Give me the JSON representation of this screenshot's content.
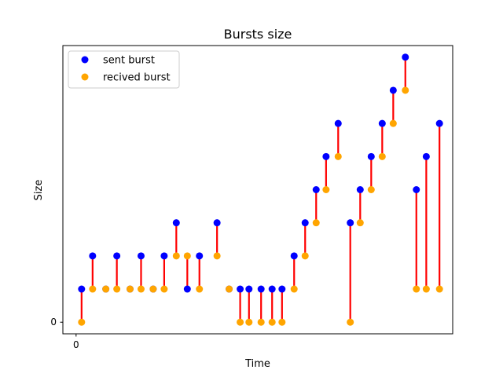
{
  "chart_data": {
    "type": "scatter",
    "title": "Bursts size",
    "xlabel": "Time",
    "ylabel": "Size",
    "x_ticks": [
      {
        "value": 0,
        "label": "0"
      }
    ],
    "y_ticks": [
      {
        "value": 0,
        "label": "0"
      }
    ],
    "xlim": [
      -1.2,
      34.2
    ],
    "ylim": [
      -0.35,
      8.35
    ],
    "grid": false,
    "legend_position": "top-left",
    "colors": {
      "sent": "#0000ff",
      "received": "#ffa500",
      "connector": "#ff0000"
    },
    "series": [
      {
        "name": "sent burst",
        "x": [
          0.5,
          1.5,
          2.7,
          3.7,
          4.9,
          5.9,
          7.0,
          8.0,
          9.1,
          10.1,
          11.2,
          12.8,
          13.9,
          14.9,
          15.7,
          16.8,
          17.8,
          18.7,
          19.8,
          20.8,
          21.8,
          22.7,
          23.8,
          24.9,
          25.8,
          26.8,
          27.8,
          28.8,
          29.9,
          30.9,
          31.8,
          33.0
        ],
        "values": [
          1,
          2,
          1,
          2,
          1,
          2,
          1,
          2,
          3,
          1,
          2,
          3,
          1,
          1,
          1,
          1,
          1,
          1,
          2,
          3,
          4,
          5,
          6,
          3,
          4,
          5,
          6,
          7,
          8,
          4,
          5,
          6
        ]
      },
      {
        "name": "recived burst",
        "x": [
          0.5,
          1.5,
          2.7,
          3.7,
          4.9,
          5.9,
          7.0,
          8.0,
          9.1,
          10.1,
          11.2,
          12.8,
          13.9,
          14.9,
          15.7,
          16.8,
          17.8,
          18.7,
          19.8,
          20.8,
          21.8,
          22.7,
          23.8,
          24.9,
          25.8,
          26.8,
          27.8,
          28.8,
          29.9,
          30.9,
          31.8,
          33.0
        ],
        "values": [
          0,
          1,
          1,
          1,
          1,
          1,
          1,
          1,
          2,
          2,
          1,
          2,
          1,
          0,
          0,
          0,
          0,
          0,
          1,
          2,
          3,
          4,
          5,
          0,
          3,
          4,
          5,
          6,
          7,
          1,
          1,
          1
        ]
      }
    ]
  }
}
